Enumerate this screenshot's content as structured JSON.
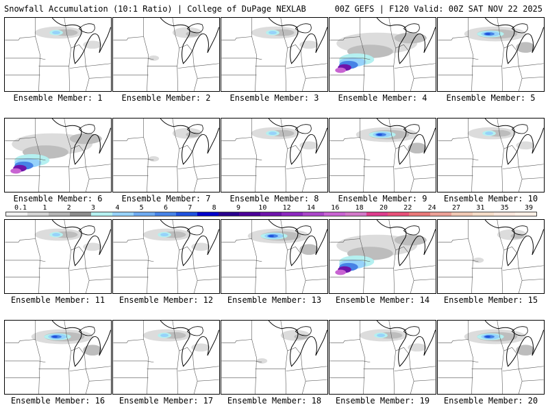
{
  "header": {
    "title_left": "Snowfall Accumulation (10:1 Ratio) | College of DuPage NEXLAB",
    "title_right": "00Z GEFS | F120 Valid: 00Z SAT NOV 22 2025"
  },
  "panels": [
    {
      "label": "Ensemble Member: 1",
      "intensity": "light"
    },
    {
      "label": "Ensemble Member: 2",
      "intensity": "trace"
    },
    {
      "label": "Ensemble Member: 3",
      "intensity": "light"
    },
    {
      "label": "Ensemble Member: 4",
      "intensity": "heavy"
    },
    {
      "label": "Ensemble Member: 5",
      "intensity": "moderate"
    },
    {
      "label": "Ensemble Member: 6",
      "intensity": "heavy"
    },
    {
      "label": "Ensemble Member: 7",
      "intensity": "trace"
    },
    {
      "label": "Ensemble Member: 8",
      "intensity": "light"
    },
    {
      "label": "Ensemble Member: 9",
      "intensity": "moderate"
    },
    {
      "label": "Ensemble Member: 10",
      "intensity": "light"
    },
    {
      "label": "Ensemble Member: 11",
      "intensity": "light"
    },
    {
      "label": "Ensemble Member: 12",
      "intensity": "light"
    },
    {
      "label": "Ensemble Member: 13",
      "intensity": "moderate"
    },
    {
      "label": "Ensemble Member: 14",
      "intensity": "heavy"
    },
    {
      "label": "Ensemble Member: 15",
      "intensity": "trace"
    },
    {
      "label": "Ensemble Member: 16",
      "intensity": "moderate"
    },
    {
      "label": "Ensemble Member: 17",
      "intensity": "light"
    },
    {
      "label": "Ensemble Member: 18",
      "intensity": "trace"
    },
    {
      "label": "Ensemble Member: 19",
      "intensity": "light"
    },
    {
      "label": "Ensemble Member: 20",
      "intensity": "moderate"
    }
  ],
  "legend": {
    "labels": [
      "0.1",
      "1",
      "2",
      "3",
      "4",
      "5",
      "6",
      "7",
      "8",
      "9",
      "10",
      "12",
      "14",
      "16",
      "18",
      "20",
      "22",
      "24",
      "27",
      "31",
      "35",
      "39"
    ],
    "colors": [
      "#f0f0f0",
      "#d4d4d4",
      "#b4b4b4",
      "#8c8c8c",
      "#b4f0f0",
      "#96d2fa",
      "#6eaaf0",
      "#4682e6",
      "#1e50dc",
      "#0000c8",
      "#28008c",
      "#4b0096",
      "#6e14aa",
      "#8c28be",
      "#aa46c8",
      "#c864d2",
      "#d278c8",
      "#dc3c8c",
      "#e65078",
      "#e87878",
      "#eba096",
      "#f0c8b4",
      "#f5dcc8",
      "#fae6dc",
      "#fff0e6"
    ]
  }
}
